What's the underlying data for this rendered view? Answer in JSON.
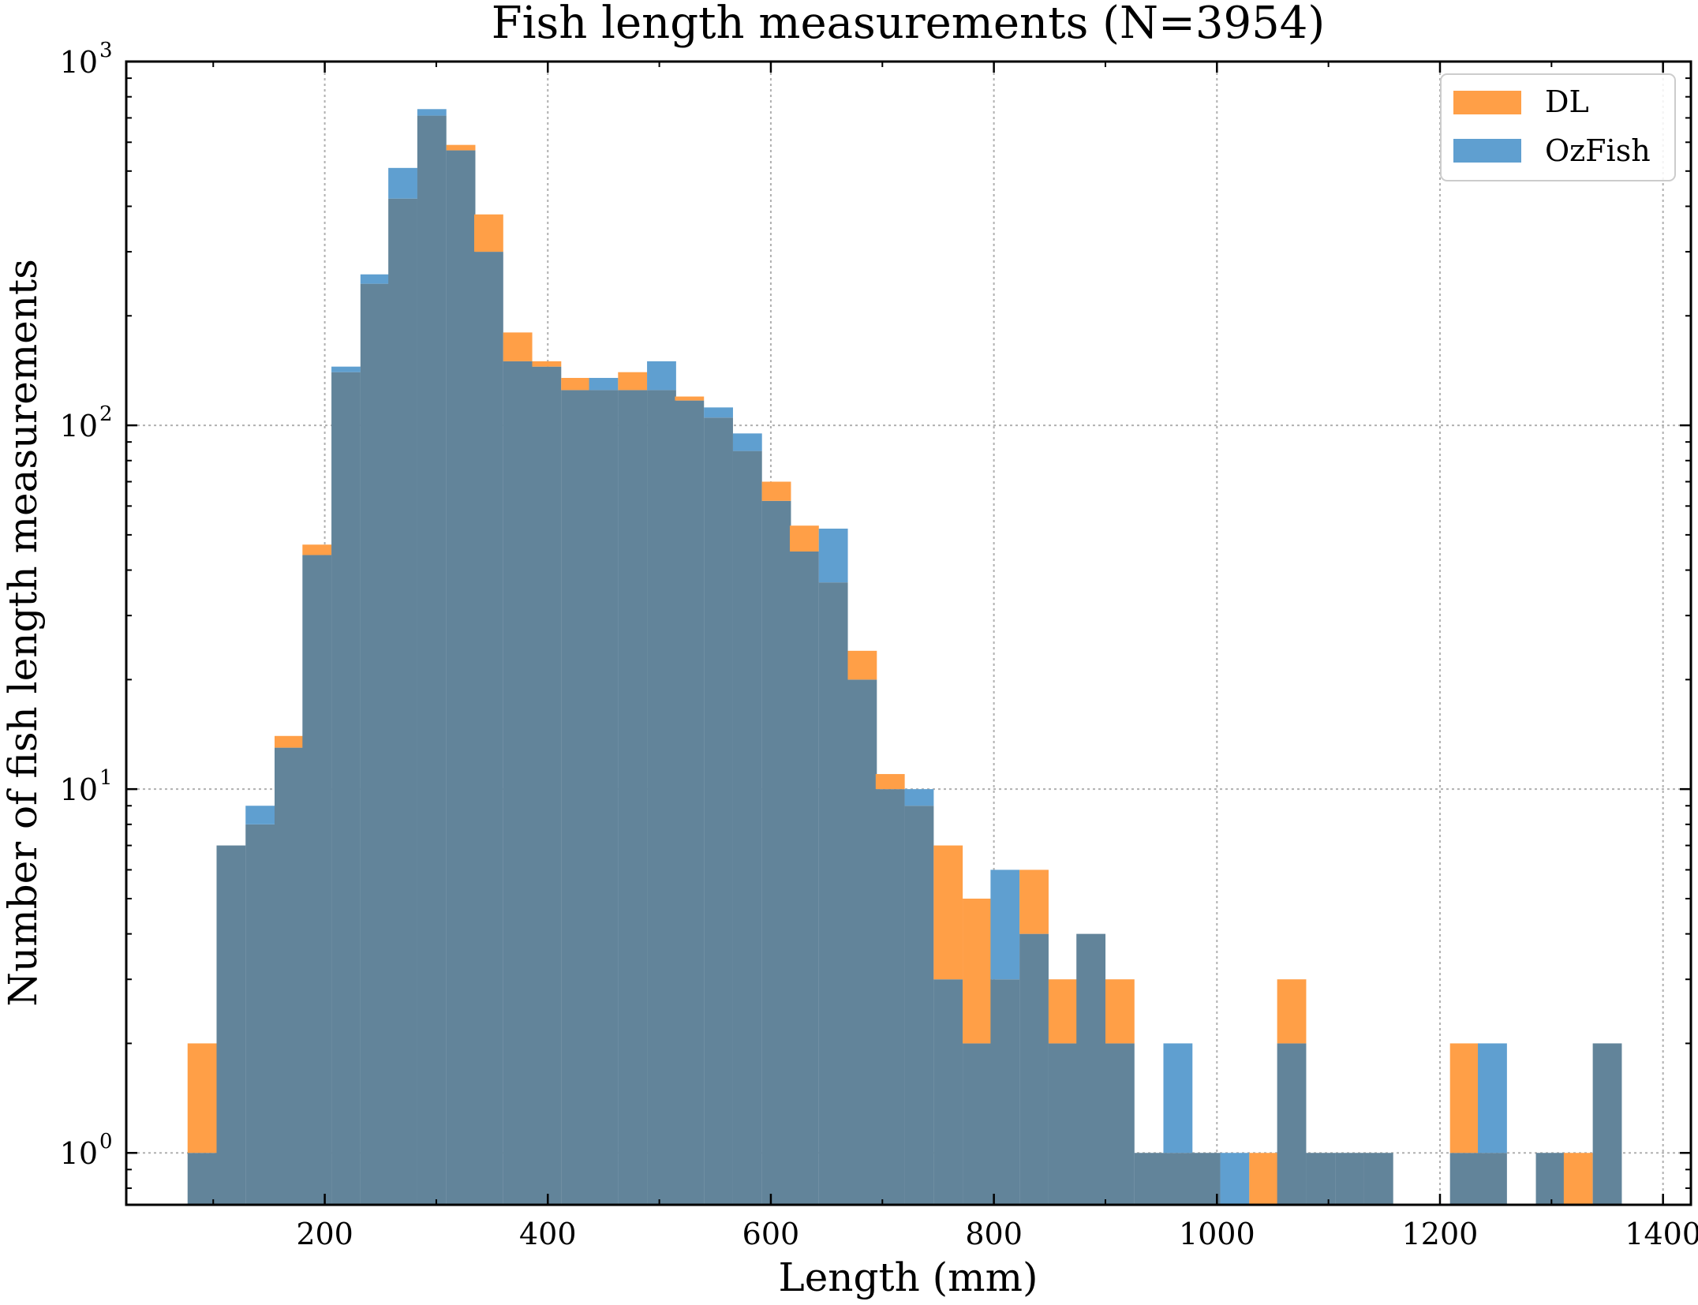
{
  "chart_data": {
    "type": "bar",
    "title": "Fish length measurements (N=3954)",
    "xlabel": "Length (mm)",
    "ylabel": "Number of fish length measurements",
    "yscale": "log",
    "xlim": [
      22,
      1425
    ],
    "ylim": [
      0.72,
      1000
    ],
    "x_ticks": [
      200,
      400,
      600,
      800,
      1000,
      1200,
      1400
    ],
    "x_tick_labels": [
      "200",
      "400",
      "600",
      "800",
      "1000",
      "1200",
      "1400"
    ],
    "y_ticks": [
      1,
      10,
      100,
      1000
    ],
    "y_tick_base": "10",
    "y_tick_exponents": [
      "0",
      "1",
      "2",
      "3"
    ],
    "grid": true,
    "legend_position": "top-right",
    "bin_width": 25.7,
    "bins": [
      77,
      103,
      129,
      155,
      180,
      206,
      232,
      257,
      283,
      309,
      334,
      360,
      386,
      412,
      437,
      463,
      489,
      514,
      540,
      566,
      592,
      617,
      643,
      669,
      694,
      720,
      746,
      772,
      797,
      823,
      849,
      874,
      900,
      926,
      952,
      977,
      1003,
      1029,
      1054,
      1080,
      1106,
      1132,
      1157,
      1183,
      1209,
      1234,
      1260,
      1286,
      1311,
      1337
    ],
    "series": [
      {
        "name": "DL",
        "color": "#ff9f47",
        "values": [
          2,
          7,
          8,
          14,
          47,
          140,
          245,
          420,
          710,
          590,
          380,
          180,
          150,
          135,
          125,
          140,
          125,
          120,
          105,
          85,
          70,
          53,
          37,
          24,
          11,
          9,
          7,
          5,
          3,
          6,
          3,
          4,
          3,
          1,
          1,
          1,
          0,
          1,
          3,
          1,
          1,
          1,
          0,
          0,
          2,
          1,
          0,
          1,
          1,
          2
        ]
      },
      {
        "name": "OzFish",
        "color": "#5f9fd0",
        "values": [
          1,
          7,
          9,
          13,
          44,
          145,
          260,
          510,
          740,
          570,
          300,
          150,
          145,
          125,
          135,
          125,
          150,
          117,
          112,
          95,
          62,
          45,
          52,
          20,
          10,
          10,
          3,
          2,
          6,
          4,
          2,
          4,
          2,
          1,
          2,
          1,
          1,
          0,
          2,
          1,
          1,
          1,
          0,
          0,
          1,
          2,
          0,
          1,
          0,
          2
        ]
      }
    ],
    "overlap_color": "#62849a"
  }
}
